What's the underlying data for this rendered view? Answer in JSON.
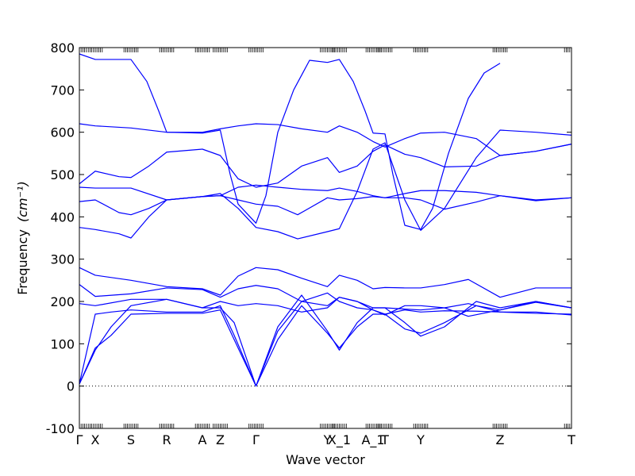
{
  "chart_data": {
    "type": "line",
    "xlabel": "Wave vector",
    "ylabel": "Frequency",
    "ylabel_unit": "(cm⁻¹)",
    "ylim": [
      -100,
      800
    ],
    "yticks": [
      -100,
      0,
      100,
      200,
      300,
      400,
      500,
      600,
      700,
      800
    ],
    "xlim": [
      0,
      12.4
    ],
    "x_ticks": [
      {
        "label": "Γ",
        "x": 0.0
      },
      {
        "label": "X",
        "x": 0.4
      },
      {
        "label": "S",
        "x": 1.3
      },
      {
        "label": "R",
        "x": 2.2
      },
      {
        "label": "A",
        "x": 3.1
      },
      {
        "label": "Z",
        "x": 3.55
      },
      {
        "label": "Γ",
        "x": 4.45
      },
      {
        "label": "Y",
        "x": 6.25
      },
      {
        "label": "X_1",
        "x": 6.55
      },
      {
        "label": "A_1",
        "x": 7.4
      },
      {
        "label": "T",
        "x": 7.7
      },
      {
        "label": "Y",
        "x": 8.6
      },
      {
        "label": "Z",
        "x": 10.6
      },
      {
        "label": "T",
        "x": 12.4
      }
    ],
    "zero_line": {
      "y": 0,
      "style": "dotted"
    },
    "line_color": "#0000ff",
    "series": [
      {
        "values": [
          [
            0,
            5
          ],
          [
            0.4,
            170
          ],
          [
            0.8,
            175
          ],
          [
            1.3,
            180
          ],
          [
            2.2,
            175
          ],
          [
            3.1,
            175
          ],
          [
            3.55,
            190
          ],
          [
            3.9,
            120
          ],
          [
            4.45,
            0
          ],
          [
            5.0,
            130
          ],
          [
            5.6,
            200
          ],
          [
            6.25,
            220
          ],
          [
            6.55,
            200
          ],
          [
            7.0,
            185
          ],
          [
            7.4,
            180
          ],
          [
            7.7,
            170
          ],
          [
            8.2,
            180
          ],
          [
            8.6,
            175
          ],
          [
            9.2,
            178
          ],
          [
            10.0,
            177
          ],
          [
            10.6,
            175
          ],
          [
            11.5,
            172
          ],
          [
            12.4,
            170
          ]
        ]
      },
      {
        "values": [
          [
            0,
            5
          ],
          [
            0.4,
            90
          ],
          [
            0.8,
            120
          ],
          [
            1.3,
            170
          ],
          [
            2.2,
            172
          ],
          [
            3.1,
            172
          ],
          [
            3.55,
            180
          ],
          [
            3.9,
            110
          ],
          [
            4.45,
            0
          ],
          [
            5.0,
            110
          ],
          [
            5.6,
            190
          ],
          [
            6.25,
            125
          ],
          [
            6.55,
            90
          ],
          [
            7.0,
            140
          ],
          [
            7.4,
            170
          ],
          [
            7.7,
            170
          ],
          [
            8.2,
            135
          ],
          [
            8.6,
            125
          ],
          [
            9.2,
            150
          ],
          [
            10.0,
            190
          ],
          [
            10.6,
            180
          ],
          [
            11.5,
            198
          ],
          [
            12.4,
            185
          ]
        ]
      },
      {
        "values": [
          [
            0,
            5
          ],
          [
            0.4,
            85
          ],
          [
            0.8,
            140
          ],
          [
            1.3,
            190
          ],
          [
            2.2,
            205
          ],
          [
            3.1,
            185
          ],
          [
            3.55,
            185
          ],
          [
            3.9,
            150
          ],
          [
            4.45,
            0
          ],
          [
            5.0,
            140
          ],
          [
            5.6,
            215
          ],
          [
            6.25,
            130
          ],
          [
            6.55,
            85
          ],
          [
            7.0,
            150
          ],
          [
            7.4,
            185
          ],
          [
            7.7,
            185
          ],
          [
            8.2,
            150
          ],
          [
            8.6,
            118
          ],
          [
            9.2,
            140
          ],
          [
            10.0,
            200
          ],
          [
            10.6,
            185
          ],
          [
            11.5,
            200
          ],
          [
            12.4,
            185
          ]
        ]
      },
      {
        "values": [
          [
            0,
            195
          ],
          [
            0.4,
            190
          ],
          [
            1.3,
            205
          ],
          [
            2.2,
            205
          ],
          [
            3.1,
            185
          ],
          [
            3.55,
            200
          ],
          [
            4.0,
            190
          ],
          [
            4.45,
            195
          ],
          [
            5.0,
            190
          ],
          [
            5.6,
            175
          ],
          [
            6.25,
            185
          ],
          [
            6.55,
            210
          ],
          [
            7.0,
            200
          ],
          [
            7.4,
            180
          ],
          [
            7.7,
            168
          ],
          [
            8.2,
            190
          ],
          [
            8.6,
            190
          ],
          [
            9.2,
            185
          ],
          [
            9.8,
            165
          ],
          [
            10.6,
            180
          ],
          [
            11.5,
            200
          ],
          [
            12.4,
            185
          ]
        ]
      },
      {
        "values": [
          [
            0,
            240
          ],
          [
            0.4,
            212
          ],
          [
            1.3,
            218
          ],
          [
            2.2,
            232
          ],
          [
            3.1,
            228
          ],
          [
            3.55,
            210
          ],
          [
            4.0,
            230
          ],
          [
            4.45,
            238
          ],
          [
            5.0,
            230
          ],
          [
            5.6,
            200
          ],
          [
            6.25,
            190
          ],
          [
            6.55,
            210
          ],
          [
            7.0,
            200
          ],
          [
            7.4,
            185
          ],
          [
            7.7,
            185
          ],
          [
            8.2,
            182
          ],
          [
            8.6,
            180
          ],
          [
            9.2,
            185
          ],
          [
            9.8,
            195
          ],
          [
            10.6,
            175
          ],
          [
            11.5,
            175
          ],
          [
            12.4,
            168
          ]
        ]
      },
      {
        "values": [
          [
            0,
            280
          ],
          [
            0.4,
            262
          ],
          [
            1.3,
            250
          ],
          [
            2.2,
            235
          ],
          [
            3.1,
            230
          ],
          [
            3.55,
            215
          ],
          [
            4.0,
            260
          ],
          [
            4.45,
            280
          ],
          [
            5.0,
            275
          ],
          [
            5.6,
            255
          ],
          [
            6.25,
            235
          ],
          [
            6.55,
            262
          ],
          [
            7.0,
            250
          ],
          [
            7.4,
            230
          ],
          [
            7.7,
            233
          ],
          [
            8.2,
            232
          ],
          [
            8.6,
            232
          ],
          [
            9.2,
            240
          ],
          [
            9.8,
            252
          ],
          [
            10.6,
            210
          ],
          [
            11.5,
            232
          ],
          [
            12.4,
            232
          ]
        ]
      },
      {
        "values": [
          [
            0,
            375
          ],
          [
            0.4,
            370
          ],
          [
            1.0,
            360
          ],
          [
            1.3,
            350
          ],
          [
            1.75,
            400
          ],
          [
            2.2,
            440
          ],
          [
            3.1,
            448
          ],
          [
            3.55,
            455
          ],
          [
            4.0,
            420
          ],
          [
            4.45,
            375
          ],
          [
            5.0,
            365
          ],
          [
            5.5,
            348
          ],
          [
            6.25,
            365
          ],
          [
            6.55,
            372
          ],
          [
            7.0,
            460
          ],
          [
            7.4,
            560
          ],
          [
            7.7,
            575
          ],
          [
            8.2,
            440
          ],
          [
            8.6,
            368
          ],
          [
            9.2,
            420
          ],
          [
            10.0,
            540
          ],
          [
            10.6,
            605
          ],
          [
            11.5,
            600
          ],
          [
            12.4,
            593
          ]
        ]
      },
      {
        "values": [
          [
            0,
            436
          ],
          [
            0.4,
            440
          ],
          [
            1.0,
            410
          ],
          [
            1.3,
            405
          ],
          [
            1.75,
            420
          ],
          [
            2.2,
            440
          ],
          [
            3.1,
            448
          ],
          [
            3.55,
            450
          ],
          [
            4.0,
            440
          ],
          [
            4.45,
            430
          ],
          [
            5.0,
            425
          ],
          [
            5.5,
            405
          ],
          [
            6.25,
            445
          ],
          [
            6.55,
            440
          ],
          [
            7.0,
            443
          ],
          [
            7.4,
            448
          ],
          [
            7.7,
            445
          ],
          [
            8.2,
            445
          ],
          [
            8.6,
            440
          ],
          [
            9.2,
            418
          ],
          [
            10.0,
            435
          ],
          [
            10.6,
            450
          ],
          [
            11.5,
            438
          ],
          [
            12.4,
            445
          ]
        ]
      },
      {
        "values": [
          [
            0,
            470
          ],
          [
            0.4,
            468
          ],
          [
            1.3,
            468
          ],
          [
            2.2,
            440
          ],
          [
            3.1,
            448
          ],
          [
            3.55,
            450
          ],
          [
            4.0,
            470
          ],
          [
            4.45,
            475
          ],
          [
            5.0,
            470
          ],
          [
            5.6,
            465
          ],
          [
            6.25,
            462
          ],
          [
            6.55,
            468
          ],
          [
            7.0,
            460
          ],
          [
            7.4,
            450
          ],
          [
            7.7,
            445
          ],
          [
            8.2,
            455
          ],
          [
            8.6,
            462
          ],
          [
            9.2,
            462
          ],
          [
            10.0,
            458
          ],
          [
            10.6,
            450
          ],
          [
            11.5,
            440
          ],
          [
            12.4,
            445
          ]
        ]
      },
      {
        "values": [
          [
            0,
            478
          ],
          [
            0.4,
            508
          ],
          [
            1.0,
            495
          ],
          [
            1.3,
            493
          ],
          [
            1.75,
            520
          ],
          [
            2.2,
            553
          ],
          [
            3.1,
            560
          ],
          [
            3.55,
            545
          ],
          [
            4.0,
            490
          ],
          [
            4.45,
            470
          ],
          [
            5.0,
            480
          ],
          [
            5.6,
            520
          ],
          [
            6.25,
            540
          ],
          [
            6.55,
            505
          ],
          [
            7.0,
            520
          ],
          [
            7.4,
            555
          ],
          [
            7.7,
            570
          ],
          [
            8.2,
            548
          ],
          [
            8.6,
            540
          ],
          [
            9.2,
            518
          ],
          [
            10.0,
            520
          ],
          [
            10.6,
            545
          ],
          [
            11.5,
            555
          ],
          [
            12.4,
            572
          ]
        ]
      },
      {
        "values": [
          [
            0,
            620
          ],
          [
            0.4,
            615
          ],
          [
            1.3,
            610
          ],
          [
            2.2,
            600
          ],
          [
            3.1,
            600
          ],
          [
            3.55,
            608
          ],
          [
            4.0,
            615
          ],
          [
            4.45,
            620
          ],
          [
            5.0,
            618
          ],
          [
            5.6,
            608
          ],
          [
            6.25,
            600
          ],
          [
            6.55,
            615
          ],
          [
            7.0,
            600
          ],
          [
            7.4,
            578
          ],
          [
            7.7,
            565
          ],
          [
            8.2,
            585
          ],
          [
            8.6,
            598
          ],
          [
            9.2,
            600
          ],
          [
            10.0,
            585
          ],
          [
            10.6,
            545
          ],
          [
            11.5,
            555
          ],
          [
            12.4,
            572
          ]
        ]
      },
      {
        "values": [
          [
            0,
            785
          ],
          [
            0.4,
            772
          ],
          [
            1.3,
            772
          ],
          [
            1.7,
            720
          ],
          [
            2.0,
            650
          ],
          [
            2.2,
            600
          ],
          [
            3.1,
            598
          ],
          [
            3.55,
            605
          ],
          [
            3.8,
            500
          ],
          [
            4.0,
            430
          ],
          [
            4.45,
            385
          ],
          [
            4.7,
            450
          ],
          [
            5.0,
            600
          ],
          [
            5.4,
            700
          ],
          [
            5.8,
            770
          ],
          [
            6.25,
            765
          ],
          [
            6.55,
            772
          ],
          [
            6.9,
            720
          ],
          [
            7.2,
            650
          ],
          [
            7.4,
            598
          ],
          [
            7.7,
            596
          ],
          [
            7.9,
            500
          ],
          [
            8.2,
            380
          ],
          [
            8.6,
            370
          ],
          [
            8.9,
            420
          ],
          [
            9.3,
            550
          ],
          [
            9.8,
            680
          ],
          [
            10.2,
            740
          ],
          [
            10.6,
            763
          ]
        ]
      }
    ]
  }
}
